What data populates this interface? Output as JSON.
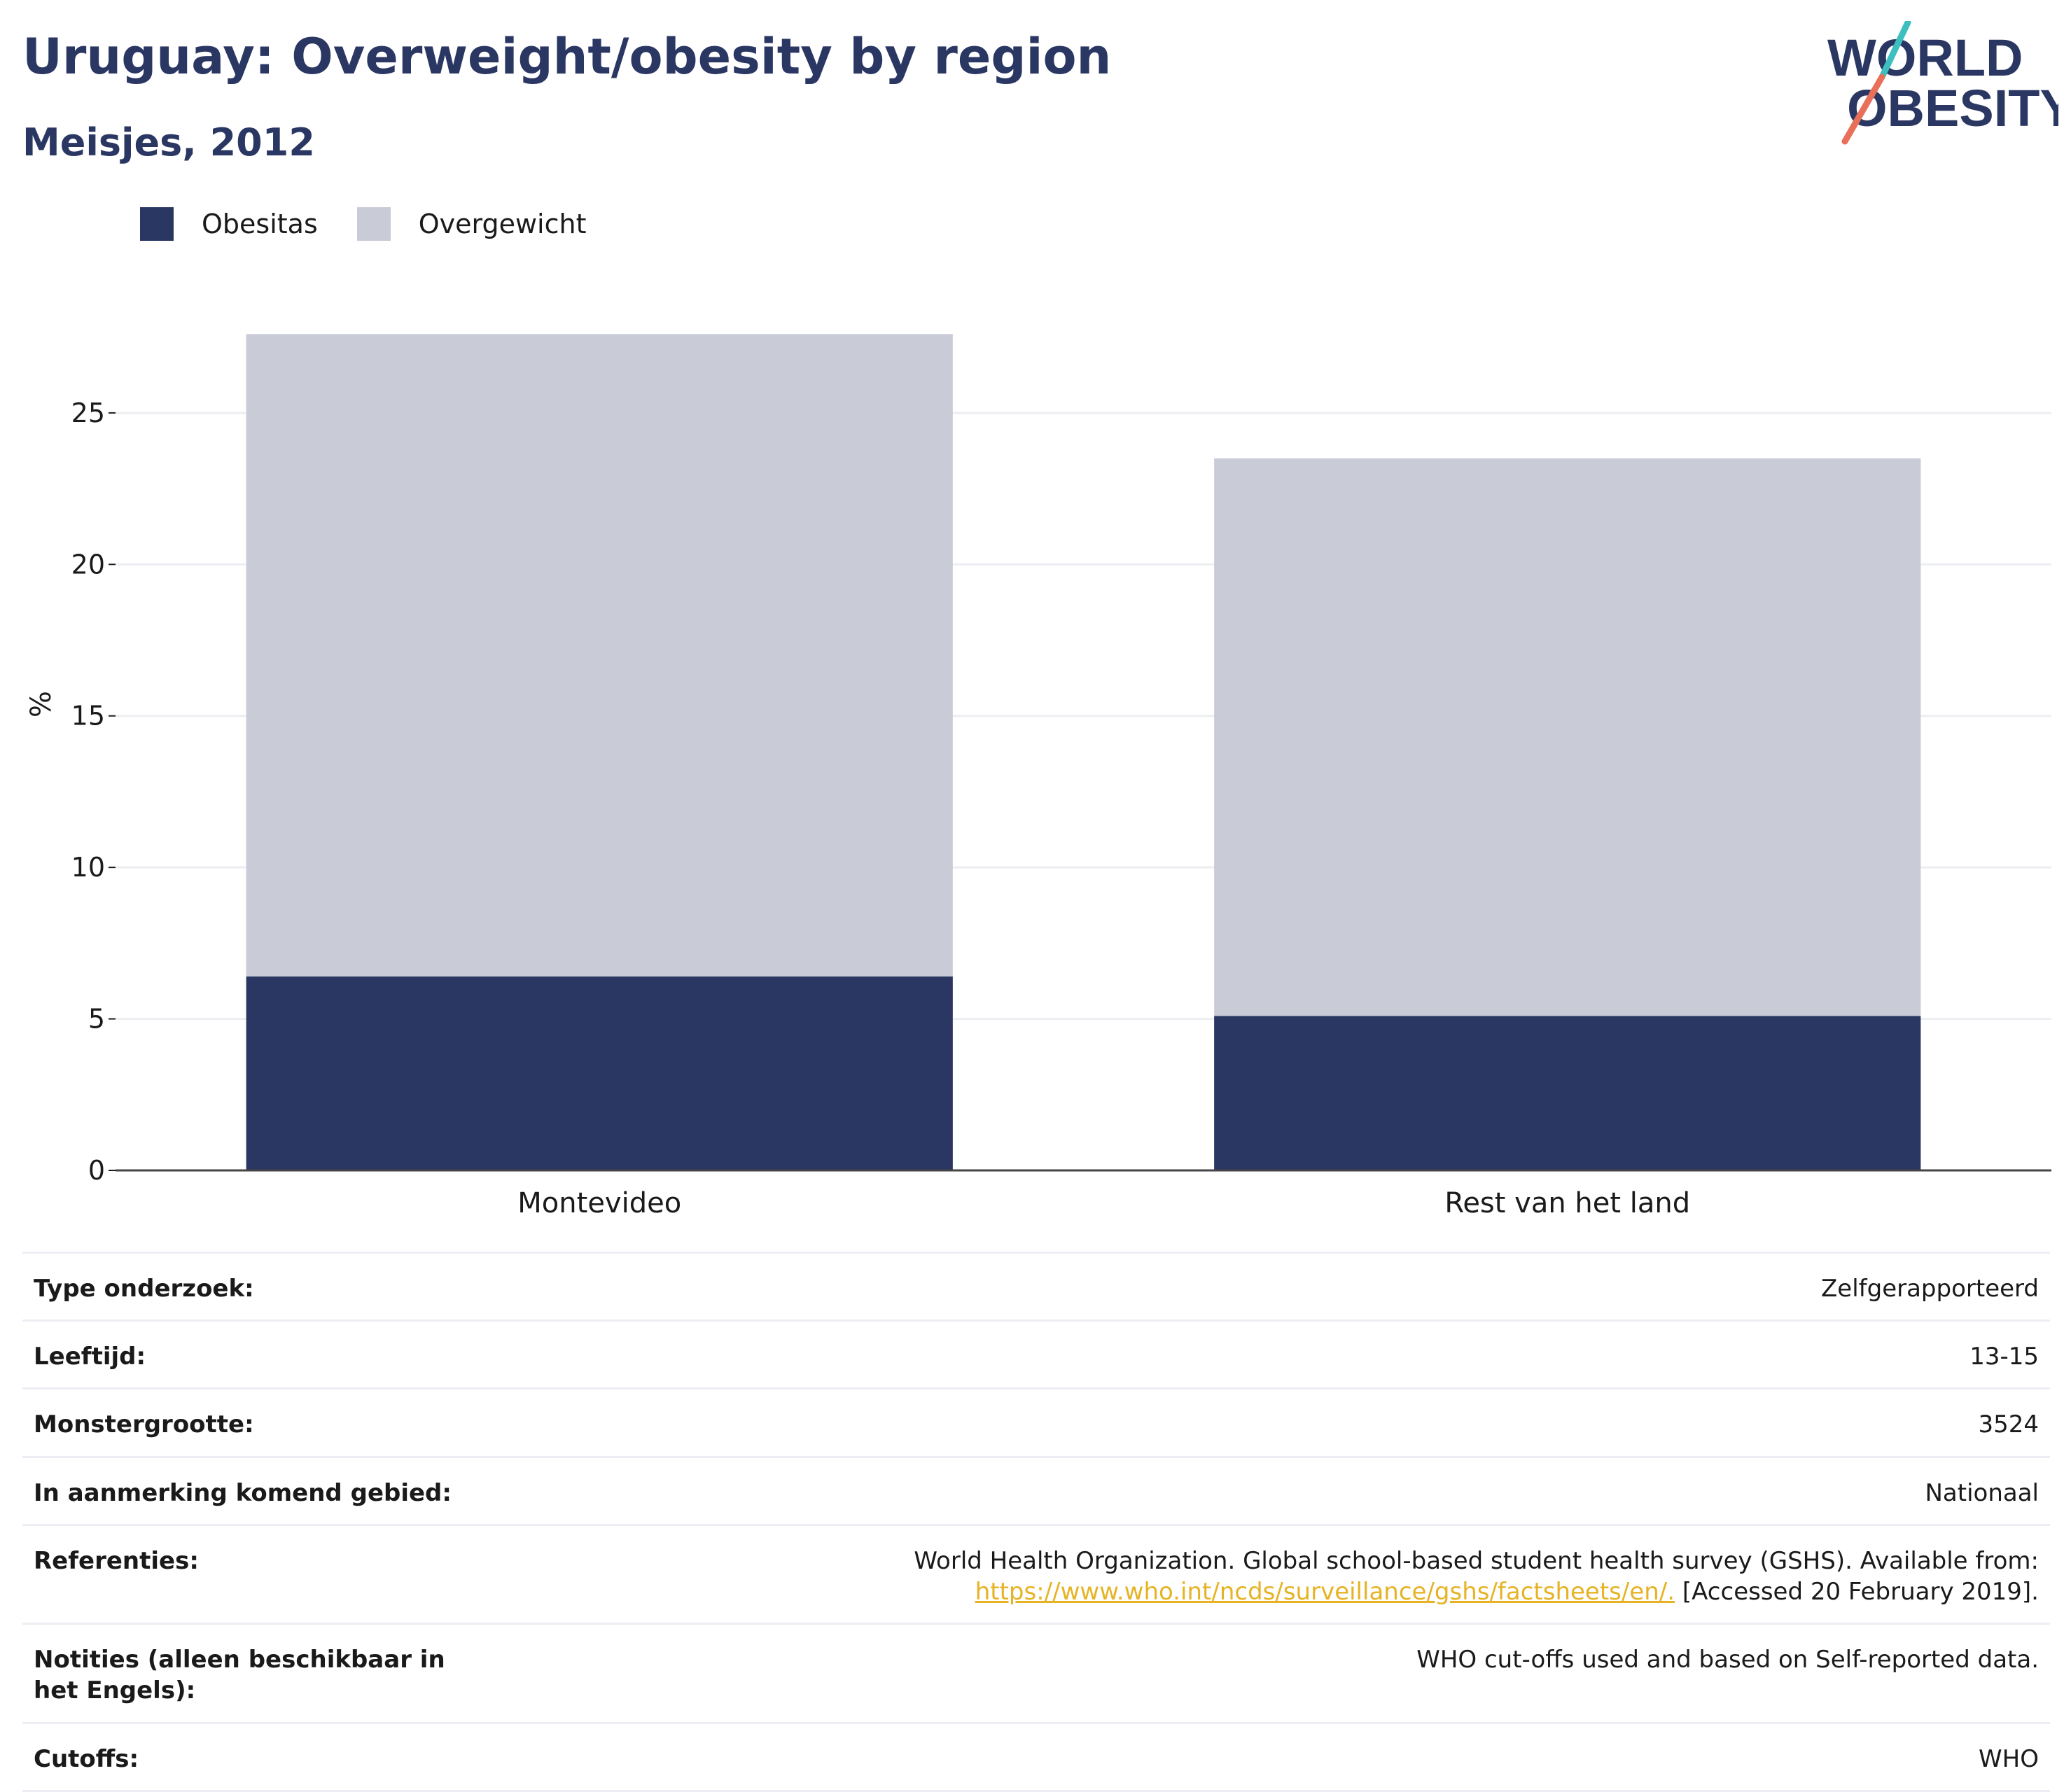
{
  "header": {
    "title": "Uruguay: Overweight/obesity by region",
    "subtitle": "Meisjes, 2012"
  },
  "logo": {
    "line1": "WORLD",
    "line2": "OBESITY"
  },
  "colors": {
    "obesitas": "#2b3763",
    "overgewicht": "#c9cbd7",
    "title": "#2b3763",
    "link": "#e6b325"
  },
  "chart_data": {
    "type": "bar",
    "stacked": true,
    "categories": [
      "Montevideo",
      "Rest van het land"
    ],
    "series": [
      {
        "name": "Obesitas",
        "values": [
          6.4,
          5.1
        ],
        "color": "#2b3763"
      },
      {
        "name": "Overgewicht",
        "values": [
          21.2,
          18.4
        ],
        "color": "#c9cbd7"
      }
    ],
    "ylabel": "%",
    "xlabel": "",
    "ylim": [
      0,
      28
    ],
    "yticks": [
      0,
      5,
      10,
      15,
      20,
      25
    ],
    "grid": true,
    "legend": "top-left"
  },
  "meta": {
    "rows": [
      {
        "label": "Type onderzoek:",
        "value": "Zelfgerapporteerd"
      },
      {
        "label": "Leeftijd:",
        "value": "13-15"
      },
      {
        "label": "Monstergrootte:",
        "value": "3524"
      },
      {
        "label": "In aanmerking komend gebied:",
        "value": "Nationaal"
      },
      {
        "label": "Referenties:",
        "value": "World Health Organization. Global school-based student health survey (GSHS). Available from:",
        "link": "https://www.who.int/ncds/surveillance/gshs/factsheets/en/.",
        "value_after": " [Accessed 20 February 2019]."
      },
      {
        "label": "Notities (alleen beschikbaar in het Engels):",
        "value": "WHO cut-offs used and based on Self-reported data."
      },
      {
        "label": "Cutoffs:",
        "value": "WHO"
      }
    ]
  }
}
